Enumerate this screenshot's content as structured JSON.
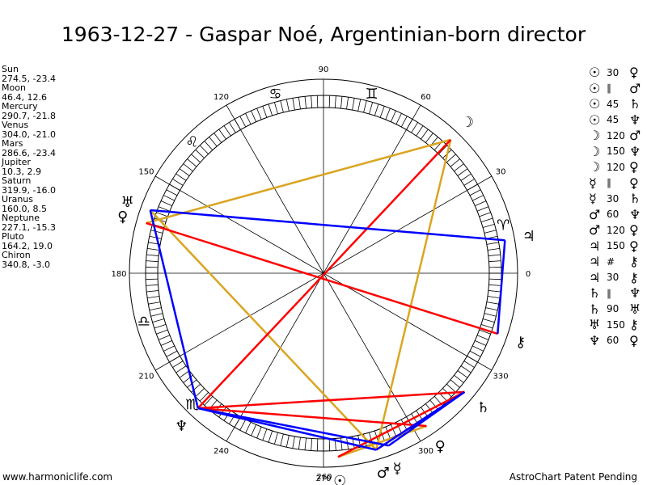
{
  "title": "1963-12-27 - Gaspar Noé, Argentinian-born director",
  "positions": [
    {
      "name": "Sun",
      "coords": "274.5, -23.4"
    },
    {
      "name": "Moon",
      "coords": "46.4, 12.6"
    },
    {
      "name": "Mercury",
      "coords": "290.7, -21.8"
    },
    {
      "name": "Venus",
      "coords": "304.0, -21.0"
    },
    {
      "name": "Mars",
      "coords": "286.6, -23.4"
    },
    {
      "name": "Jupiter",
      "coords": "10.3, 2.9"
    },
    {
      "name": "Saturn",
      "coords": "319.9, -16.0"
    },
    {
      "name": "Uranus",
      "coords": "160.0, 8.5"
    },
    {
      "name": "Neptune",
      "coords": "227.1, -15.3"
    },
    {
      "name": "Pluto",
      "coords": "164.2, 19.0"
    },
    {
      "name": "Chiron",
      "coords": "340.8, -3.0"
    }
  ],
  "aspects": [
    {
      "p1": "☉",
      "angle": "30",
      "p2": "♀"
    },
    {
      "p1": "☉",
      "angle": "∥",
      "p2": "♂"
    },
    {
      "p1": "☉",
      "angle": "45",
      "p2": "♄"
    },
    {
      "p1": "☉",
      "angle": "45",
      "p2": "♆"
    },
    {
      "p1": "☽",
      "angle": "120",
      "p2": "♂"
    },
    {
      "p1": "☽",
      "angle": "150",
      "p2": "♆"
    },
    {
      "p1": "☽",
      "angle": "120",
      "p2": "♀"
    },
    {
      "p1": "☿",
      "angle": "∥",
      "p2": "♀"
    },
    {
      "p1": "☿",
      "angle": "30",
      "p2": "♄"
    },
    {
      "p1": "♂",
      "angle": "60",
      "p2": "♆"
    },
    {
      "p1": "♂",
      "angle": "120",
      "p2": "♀"
    },
    {
      "p1": "♃",
      "angle": "150",
      "p2": "♀"
    },
    {
      "p1": "♃",
      "angle": "#",
      "p2": "⚷"
    },
    {
      "p1": "♃",
      "angle": "30",
      "p2": "⚷"
    },
    {
      "p1": "♄",
      "angle": "∥",
      "p2": "♆"
    },
    {
      "p1": "♄",
      "angle": "90",
      "p2": "♅"
    },
    {
      "p1": "♅",
      "angle": "150",
      "p2": "⚷"
    },
    {
      "p1": "♆",
      "angle": "60",
      "p2": "♀"
    }
  ],
  "degree_labels": [
    "0",
    "30",
    "60",
    "90",
    "120",
    "150",
    "180",
    "210",
    "240",
    "270",
    "300",
    "330",
    "260"
  ],
  "zodiac_signs": [
    {
      "name": "aries-icon",
      "glyph": "♈",
      "lon": 15
    },
    {
      "name": "gemini-icon",
      "glyph": "♊",
      "lon": 75
    },
    {
      "name": "cancer-icon",
      "glyph": "♋",
      "lon": 105
    },
    {
      "name": "leo-icon",
      "glyph": "♌",
      "lon": 135
    },
    {
      "name": "libra-icon",
      "glyph": "♎",
      "lon": 195
    },
    {
      "name": "scorpio-icon",
      "glyph": "♏",
      "lon": 225
    }
  ],
  "chart_data": {
    "type": "astro-wheel",
    "planets": [
      {
        "name": "sun",
        "glyph": "☉",
        "lon": 274.5
      },
      {
        "name": "moon",
        "glyph": "☽",
        "lon": 46.4
      },
      {
        "name": "mercury",
        "glyph": "☿",
        "lon": 290.7
      },
      {
        "name": "venus",
        "glyph": "♀",
        "lon": 304.0
      },
      {
        "name": "mars",
        "glyph": "♂",
        "lon": 286.6
      },
      {
        "name": "jupiter",
        "glyph": "♃",
        "lon": 10.3
      },
      {
        "name": "saturn",
        "glyph": "♄",
        "lon": 319.9
      },
      {
        "name": "uranus",
        "glyph": "♅",
        "lon": 160.0
      },
      {
        "name": "neptune",
        "glyph": "♆",
        "lon": 227.1
      },
      {
        "name": "pluto",
        "glyph": "♀",
        "lon": 164.2
      },
      {
        "name": "chiron",
        "glyph": "⚷",
        "lon": 340.8
      }
    ],
    "aspect_lines": [
      {
        "from": "moon",
        "to": "pluto",
        "color": "#daa520"
      },
      {
        "from": "moon",
        "to": "mars",
        "color": "#daa520"
      },
      {
        "from": "mars",
        "to": "uranus",
        "color": "#daa520"
      },
      {
        "from": "sun",
        "to": "venus",
        "color": "#daa520"
      },
      {
        "from": "moon",
        "to": "neptune",
        "color": "#ff0000"
      },
      {
        "from": "pluto",
        "to": "chiron",
        "color": "#ff0000"
      },
      {
        "from": "sun",
        "to": "saturn",
        "color": "#ff0000"
      },
      {
        "from": "neptune",
        "to": "saturn",
        "color": "#ff0000"
      },
      {
        "from": "neptune",
        "to": "venus",
        "color": "#ff0000"
      },
      {
        "from": "mars",
        "to": "saturn",
        "color": "#ff0000"
      },
      {
        "from": "uranus",
        "to": "jupiter",
        "color": "#0000ff"
      },
      {
        "from": "jupiter",
        "to": "chiron",
        "color": "#0000ff"
      },
      {
        "from": "uranus",
        "to": "neptune",
        "color": "#0000ff"
      },
      {
        "from": "neptune",
        "to": "mars",
        "color": "#0000ff"
      },
      {
        "from": "neptune",
        "to": "mercury",
        "color": "#0000ff"
      },
      {
        "from": "mercury",
        "to": "saturn",
        "color": "#0000ff"
      },
      {
        "from": "mars",
        "to": "saturn",
        "color": "#0000ff"
      }
    ]
  },
  "footer": {
    "left": "www.harmoniclife.com",
    "right": "AstroChart Patent Pending"
  }
}
